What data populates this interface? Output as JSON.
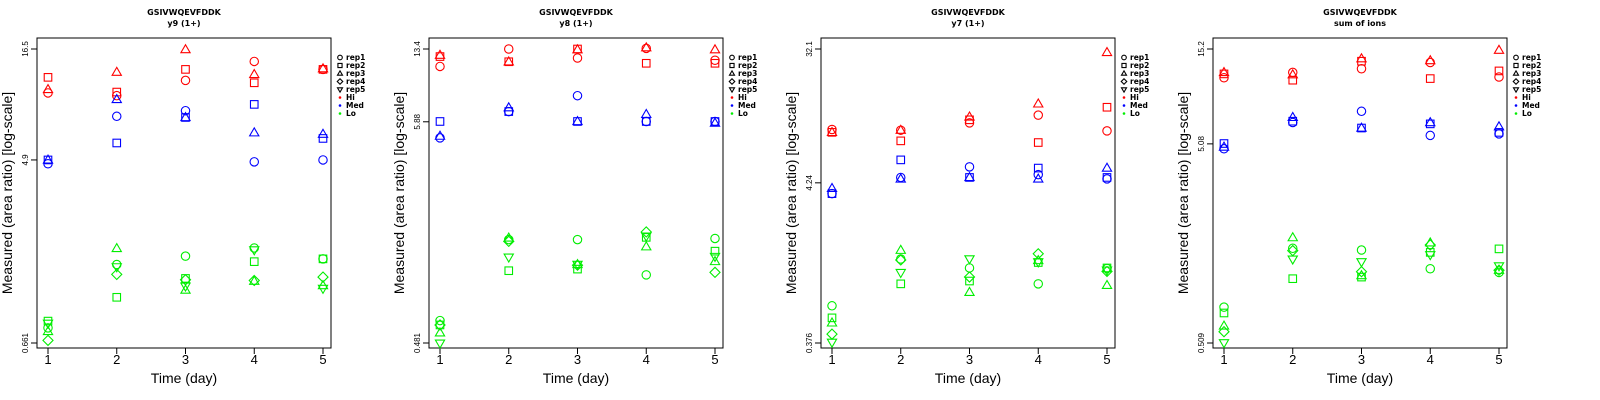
{
  "chart_data": [
    {
      "type": "scatter",
      "title": "GSIVWQEVFDDK",
      "subtitle": "y9 (1+)",
      "xlabel": "Time (day)",
      "ylabel": "Measured (area ratio) [log-scale]",
      "log_y": true,
      "ylim": [
        0.661,
        16.5
      ],
      "yticks": [
        0.661,
        4.9,
        16.5
      ],
      "ytick_labels": [
        "0.661",
        "4.9",
        "16.5"
      ],
      "xlim": [
        1,
        5
      ],
      "xticks": [
        1,
        2,
        3,
        4,
        5
      ],
      "series": [
        {
          "group": "Hi",
          "rep": "rep1",
          "x": [
            1,
            2,
            3,
            4,
            5
          ],
          "y": [
            10.2,
            9.9,
            11.7,
            14.4,
            13.2
          ]
        },
        {
          "group": "Hi",
          "rep": "rep2",
          "x": [
            1,
            2,
            3,
            4,
            5
          ],
          "y": [
            12.1,
            10.3,
            13.2,
            11.4,
            13.2
          ]
        },
        {
          "group": "Hi",
          "rep": "rep3",
          "x": [
            1,
            2,
            3,
            4,
            5
          ],
          "y": [
            10.6,
            12.8,
            16.4,
            12.5,
            13.3
          ]
        },
        {
          "group": "Med",
          "rep": "rep1",
          "x": [
            1,
            2,
            3,
            4,
            5
          ],
          "y": [
            4.7,
            7.9,
            8.4,
            4.8,
            4.9
          ]
        },
        {
          "group": "Med",
          "rep": "rep2",
          "x": [
            1,
            2,
            3,
            4,
            5
          ],
          "y": [
            4.9,
            5.9,
            7.8,
            9.0,
            6.2
          ]
        },
        {
          "group": "Med",
          "rep": "rep3",
          "x": [
            1,
            2,
            3,
            4,
            5
          ],
          "y": [
            4.9,
            9.5,
            7.8,
            6.6,
            6.5
          ]
        },
        {
          "group": "Lo",
          "rep": "rep1",
          "x": [
            1,
            2,
            3,
            4,
            5
          ],
          "y": [
            0.78,
            1.56,
            1.71,
            1.87,
            1.66
          ]
        },
        {
          "group": "Lo",
          "rep": "rep2",
          "x": [
            1,
            2,
            3,
            4,
            5
          ],
          "y": [
            0.84,
            1.09,
            1.34,
            1.61,
            1.66
          ]
        },
        {
          "group": "Lo",
          "rep": "rep3",
          "x": [
            1,
            2,
            3,
            4,
            5
          ],
          "y": [
            0.75,
            1.86,
            1.18,
            1.3,
            1.24
          ]
        },
        {
          "group": "Lo",
          "rep": "rep4",
          "x": [
            1,
            2,
            3,
            4,
            5
          ],
          "y": [
            0.68,
            1.4,
            1.32,
            1.31,
            1.36
          ]
        },
        {
          "group": "Lo",
          "rep": "rep5",
          "x": [
            1,
            2,
            3,
            4,
            5
          ],
          "y": [
            0.82,
            1.52,
            1.23,
            1.83,
            1.2
          ]
        }
      ]
    },
    {
      "type": "scatter",
      "title": "GSIVWQEVFDDK",
      "subtitle": "y8 (1+)",
      "xlabel": "Time (day)",
      "ylabel": "Measured (area ratio) [log-scale]",
      "log_y": true,
      "ylim": [
        0.481,
        13.4
      ],
      "yticks": [
        0.481,
        5.88,
        13.4
      ],
      "ytick_labels": [
        "0.481",
        "5.88",
        "13.4"
      ],
      "xlim": [
        1,
        5
      ],
      "xticks": [
        1,
        2,
        3,
        4,
        5
      ],
      "series": [
        {
          "group": "Hi",
          "rep": "rep1",
          "x": [
            1,
            2,
            3,
            4,
            5
          ],
          "y": [
            11.0,
            13.4,
            12.1,
            13.5,
            11.8
          ]
        },
        {
          "group": "Hi",
          "rep": "rep2",
          "x": [
            1,
            2,
            3,
            4,
            5
          ],
          "y": [
            12.3,
            11.6,
            13.4,
            11.4,
            11.4
          ]
        },
        {
          "group": "Hi",
          "rep": "rep3",
          "x": [
            1,
            2,
            3,
            4,
            5
          ],
          "y": [
            12.5,
            11.6,
            13.3,
            13.6,
            13.3
          ]
        },
        {
          "group": "Med",
          "rep": "rep1",
          "x": [
            1,
            2,
            3,
            4,
            5
          ],
          "y": [
            4.9,
            6.6,
            7.9,
            5.9,
            5.9
          ]
        },
        {
          "group": "Med",
          "rep": "rep2",
          "x": [
            1,
            2,
            3,
            4,
            5
          ],
          "y": [
            5.9,
            6.6,
            5.9,
            5.9,
            5.9
          ]
        },
        {
          "group": "Med",
          "rep": "rep3",
          "x": [
            1,
            2,
            3,
            4,
            5
          ],
          "y": [
            5.0,
            6.9,
            5.9,
            6.4,
            5.8
          ]
        },
        {
          "group": "Lo",
          "rep": "rep1",
          "x": [
            1,
            2,
            3,
            4,
            5
          ],
          "y": [
            0.62,
            1.55,
            1.55,
            1.04,
            1.57
          ]
        },
        {
          "group": "Lo",
          "rep": "rep2",
          "x": [
            1,
            2,
            3,
            4,
            5
          ],
          "y": [
            0.59,
            1.09,
            1.11,
            1.59,
            1.36
          ]
        },
        {
          "group": "Lo",
          "rep": "rep3",
          "x": [
            1,
            2,
            3,
            4,
            5
          ],
          "y": [
            0.54,
            1.58,
            1.17,
            1.43,
            1.21
          ]
        },
        {
          "group": "Lo",
          "rep": "rep4",
          "x": [
            1,
            2,
            3,
            4,
            5
          ],
          "y": [
            0.59,
            1.52,
            1.16,
            1.69,
            1.07
          ]
        },
        {
          "group": "Lo",
          "rep": "rep5",
          "x": [
            1,
            2,
            3,
            4,
            5
          ],
          "y": [
            0.48,
            1.27,
            1.17,
            1.61,
            1.28
          ]
        }
      ]
    },
    {
      "type": "scatter",
      "title": "GSIVWQEVFDDK",
      "subtitle": "y7 (1+)",
      "xlabel": "Time (day)",
      "ylabel": "Measured (area ratio) [log-scale]",
      "log_y": true,
      "ylim": [
        0.376,
        32.1
      ],
      "yticks": [
        0.376,
        4.24,
        32.1
      ],
      "ytick_labels": [
        "0.376",
        "4.24",
        "32.1"
      ],
      "xlim": [
        1,
        5
      ],
      "xticks": [
        1,
        2,
        3,
        4,
        5
      ],
      "series": [
        {
          "group": "Hi",
          "rep": "rep1",
          "x": [
            1,
            2,
            3,
            4,
            5
          ],
          "y": [
            9.5,
            9.4,
            10.5,
            11.8,
            9.3
          ]
        },
        {
          "group": "Hi",
          "rep": "rep2",
          "x": [
            1,
            2,
            3,
            4,
            5
          ],
          "y": [
            9.1,
            8.0,
            11.0,
            7.8,
            13.3
          ]
        },
        {
          "group": "Hi",
          "rep": "rep3",
          "x": [
            1,
            2,
            3,
            4,
            5
          ],
          "y": [
            9.1,
            9.4,
            11.5,
            14.0,
            30.5
          ]
        },
        {
          "group": "Med",
          "rep": "rep1",
          "x": [
            1,
            2,
            3,
            4,
            5
          ],
          "y": [
            3.6,
            4.6,
            5.4,
            4.8,
            4.5
          ]
        },
        {
          "group": "Med",
          "rep": "rep2",
          "x": [
            1,
            2,
            3,
            4,
            5
          ],
          "y": [
            3.6,
            6.0,
            4.6,
            5.3,
            4.6
          ]
        },
        {
          "group": "Med",
          "rep": "rep3",
          "x": [
            1,
            2,
            3,
            4,
            5
          ],
          "y": [
            3.9,
            4.5,
            4.6,
            4.5,
            5.3
          ]
        },
        {
          "group": "Lo",
          "rep": "rep1",
          "x": [
            1,
            2,
            3,
            4,
            5
          ],
          "y": [
            0.66,
            1.34,
            1.17,
            0.92,
            1.16
          ]
        },
        {
          "group": "Lo",
          "rep": "rep2",
          "x": [
            1,
            2,
            3,
            4,
            5
          ],
          "y": [
            0.55,
            0.92,
            0.96,
            1.27,
            1.17
          ]
        },
        {
          "group": "Lo",
          "rep": "rep3",
          "x": [
            1,
            2,
            3,
            4,
            5
          ],
          "y": [
            0.51,
            1.53,
            0.81,
            1.31,
            0.9
          ]
        },
        {
          "group": "Lo",
          "rep": "rep4",
          "x": [
            1,
            2,
            3,
            4,
            5
          ],
          "y": [
            0.43,
            1.32,
            1.02,
            1.45,
            1.11
          ]
        },
        {
          "group": "Lo",
          "rep": "rep5",
          "x": [
            1,
            2,
            3,
            4,
            5
          ],
          "y": [
            0.38,
            1.09,
            1.34,
            1.28,
            1.13
          ]
        }
      ]
    },
    {
      "type": "scatter",
      "title": "GSIVWQEVFDDK",
      "subtitle": "sum of ions",
      "xlabel": "Time (day)",
      "ylabel": "Measured (area ratio) [log-scale]",
      "log_y": true,
      "ylim": [
        0.509,
        15.2
      ],
      "yticks": [
        0.509,
        5.08,
        15.2
      ],
      "ytick_labels": [
        "0.509",
        "5.08",
        "15.2"
      ],
      "xlim": [
        1,
        5
      ],
      "xticks": [
        1,
        2,
        3,
        4,
        5
      ],
      "series": [
        {
          "group": "Hi",
          "rep": "rep1",
          "x": [
            1,
            2,
            3,
            4,
            5
          ],
          "y": [
            10.9,
            11.6,
            12.1,
            13.0,
            11.0
          ]
        },
        {
          "group": "Hi",
          "rep": "rep2",
          "x": [
            1,
            2,
            3,
            4,
            5
          ],
          "y": [
            11.4,
            10.6,
            13.2,
            10.8,
            11.8
          ]
        },
        {
          "group": "Hi",
          "rep": "rep3",
          "x": [
            1,
            2,
            3,
            4,
            5
          ],
          "y": [
            11.6,
            11.3,
            13.6,
            13.3,
            15.0
          ]
        },
        {
          "group": "Med",
          "rep": "rep1",
          "x": [
            1,
            2,
            3,
            4,
            5
          ],
          "y": [
            4.8,
            6.5,
            7.4,
            5.6,
            5.7
          ]
        },
        {
          "group": "Med",
          "rep": "rep2",
          "x": [
            1,
            2,
            3,
            4,
            5
          ],
          "y": [
            5.1,
            6.6,
            6.1,
            6.4,
            5.8
          ]
        },
        {
          "group": "Med",
          "rep": "rep3",
          "x": [
            1,
            2,
            3,
            4,
            5
          ],
          "y": [
            4.9,
            6.9,
            6.1,
            6.5,
            6.2
          ]
        },
        {
          "group": "Lo",
          "rep": "rep1",
          "x": [
            1,
            2,
            3,
            4,
            5
          ],
          "y": [
            0.77,
            1.52,
            1.49,
            1.2,
            1.15
          ]
        },
        {
          "group": "Lo",
          "rep": "rep2",
          "x": [
            1,
            2,
            3,
            4,
            5
          ],
          "y": [
            0.72,
            1.07,
            1.09,
            1.45,
            1.51
          ]
        },
        {
          "group": "Lo",
          "rep": "rep3",
          "x": [
            1,
            2,
            3,
            4,
            5
          ],
          "y": [
            0.62,
            1.72,
            1.11,
            1.62,
            1.18
          ]
        },
        {
          "group": "Lo",
          "rep": "rep4",
          "x": [
            1,
            2,
            3,
            4,
            5
          ],
          "y": [
            0.58,
            1.48,
            1.16,
            1.58,
            1.18
          ]
        },
        {
          "group": "Lo",
          "rep": "rep5",
          "x": [
            1,
            2,
            3,
            4,
            5
          ],
          "y": [
            0.51,
            1.34,
            1.3,
            1.41,
            1.24
          ]
        }
      ]
    }
  ],
  "legend": {
    "position": "right",
    "reps": [
      {
        "label": "rep1",
        "shape": "circle"
      },
      {
        "label": "rep2",
        "shape": "square"
      },
      {
        "label": "rep3",
        "shape": "triangle-up"
      },
      {
        "label": "rep4",
        "shape": "diamond"
      },
      {
        "label": "rep5",
        "shape": "triangle-down"
      }
    ],
    "groups": [
      {
        "label": "Hi",
        "color": "#ff0000"
      },
      {
        "label": "Med",
        "color": "#0000ff"
      },
      {
        "label": "Lo",
        "color": "#00ee00"
      }
    ]
  }
}
